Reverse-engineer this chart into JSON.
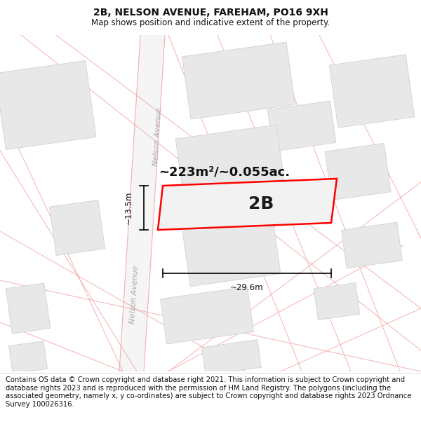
{
  "title": "2B, NELSON AVENUE, FAREHAM, PO16 9XH",
  "subtitle": "Map shows position and indicative extent of the property.",
  "footer": "Contains OS data © Crown copyright and database right 2021. This information is subject to Crown copyright and database rights 2023 and is reproduced with the permission of HM Land Registry. The polygons (including the associated geometry, namely x, y co-ordinates) are subject to Crown copyright and database rights 2023 Ordnance Survey 100026316.",
  "bg_color": "#ffffff",
  "highlight_edge": "#ff0000",
  "street_label": "Nelson Avenue",
  "area_label": "~223m²/~0.055ac.",
  "plot_label": "2B",
  "width_label": "~29.6m",
  "height_label": "~13.5m",
  "title_fontsize": 10,
  "subtitle_fontsize": 8.5,
  "footer_fontsize": 7.2,
  "label_fontsize": 18,
  "area_fontsize": 13,
  "street_fontsize": 8
}
